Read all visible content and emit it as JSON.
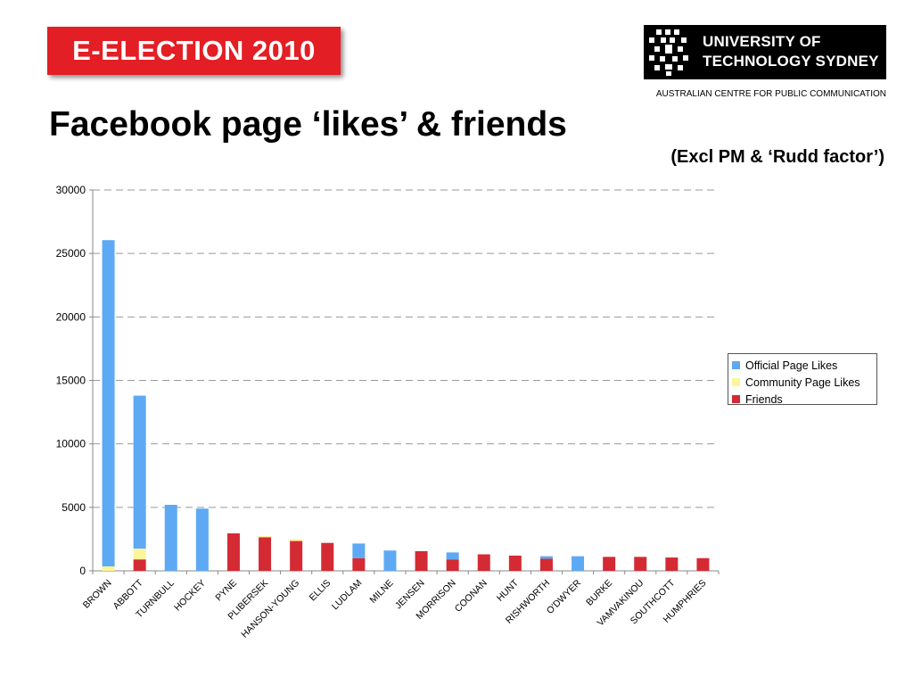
{
  "header": {
    "badge": "E-ELECTION 2010",
    "logo_line1": "UNIVERSITY OF",
    "logo_line2": "TECHNOLOGY SYDNEY",
    "centre": "AUSTRALIAN CENTRE FOR PUBLIC COMMUNICATION"
  },
  "icons": {
    "logo": "uts-logo-icon"
  },
  "colors": {
    "badge": "#e31e24",
    "official": "#5ea9f3",
    "community": "#fdf59a",
    "friends": "#d42a34",
    "grid": "#999999"
  },
  "chart_data": {
    "type": "bar",
    "stacked": true,
    "title": "Facebook page ‘likes’ & friends",
    "subtitle": "(Excl PM & ‘Rudd factor’)",
    "xlabel": "",
    "ylabel": "",
    "ylim": [
      0,
      30000
    ],
    "yticks": [
      0,
      5000,
      10000,
      15000,
      20000,
      25000,
      30000
    ],
    "grid": "horizontal-dashed",
    "legend_position": "right",
    "categories": [
      "BROWN",
      "ABBOTT",
      "TURNBULL",
      "HOCKEY",
      "PYNE",
      "PLIBERSEK",
      "HANSON-YOUNG",
      "ELLIS",
      "LUDLAM",
      "MILNE",
      "JENSEN",
      "MORRISON",
      "COONAN",
      "HUNT",
      "RISHWORTH",
      "O'DWYER",
      "BURKE",
      "VAMVAKINOU",
      "SOUTHCOTT",
      "HUMPHRIES"
    ],
    "series": [
      {
        "name": "Friends",
        "values": [
          0,
          900,
          0,
          0,
          2950,
          2650,
          2350,
          2200,
          1000,
          0,
          1550,
          900,
          1300,
          1200,
          950,
          0,
          1100,
          1100,
          1050,
          1000
        ]
      },
      {
        "name": "Community Page Likes",
        "values": [
          350,
          850,
          0,
          0,
          0,
          100,
          150,
          0,
          0,
          0,
          0,
          0,
          0,
          0,
          0,
          0,
          0,
          0,
          0,
          0
        ]
      },
      {
        "name": "Official Page Likes",
        "values": [
          25700,
          12050,
          5200,
          4900,
          0,
          0,
          0,
          0,
          1150,
          1600,
          0,
          550,
          0,
          0,
          200,
          1150,
          0,
          0,
          0,
          0
        ]
      }
    ],
    "legend": [
      "Official Page Likes",
      "Community Page Likes",
      "Friends"
    ]
  }
}
